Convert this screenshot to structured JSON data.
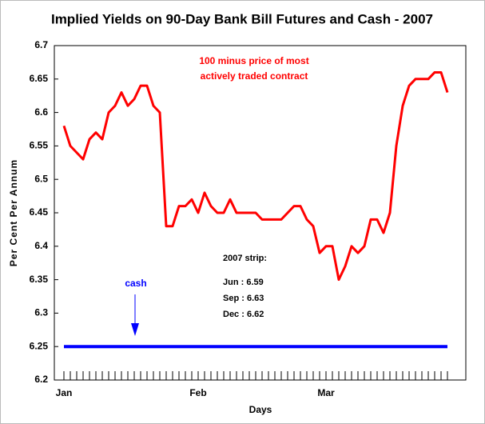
{
  "chart_data": {
    "type": "line",
    "title": "Implied Yields on 90-Day Bank Bill Futures and Cash - 2007",
    "xlabel": "Days",
    "ylabel": "Per Cent Per Annum",
    "annotations": [
      "100 minus price of most",
      "actively traded contract",
      "cash",
      "2007 strip:",
      "Jun :  6.59",
      "Sep :  6.63",
      "Dec :  6.62"
    ],
    "categories": [
      "Jan",
      null,
      null,
      null,
      null,
      null,
      null,
      null,
      null,
      null,
      null,
      null,
      null,
      null,
      null,
      null,
      null,
      null,
      null,
      null,
      null,
      "Feb",
      null,
      null,
      null,
      null,
      null,
      null,
      null,
      null,
      null,
      null,
      null,
      null,
      null,
      null,
      null,
      null,
      null,
      null,
      null,
      "Mar",
      null,
      null,
      null,
      null,
      null,
      null,
      null,
      null,
      null,
      null,
      null,
      null,
      null,
      null,
      null,
      null,
      null,
      null,
      null
    ],
    "series": [
      {
        "name": "100 minus price of most actively traded contract",
        "color": "#ff0000",
        "values": [
          6.58,
          6.55,
          6.54,
          6.53,
          6.56,
          6.57,
          6.56,
          6.6,
          6.61,
          6.63,
          6.61,
          6.62,
          6.64,
          6.64,
          6.61,
          6.6,
          6.43,
          6.43,
          6.46,
          6.46,
          6.47,
          6.45,
          6.48,
          6.46,
          6.45,
          6.45,
          6.47,
          6.45,
          6.45,
          6.45,
          6.45,
          6.44,
          6.44,
          6.44,
          6.44,
          6.45,
          6.46,
          6.46,
          6.44,
          6.43,
          6.39,
          6.4,
          6.4,
          6.35,
          6.37,
          6.4,
          6.39,
          6.4,
          6.44,
          6.44,
          6.42,
          6.45,
          6.55,
          6.61,
          6.64,
          6.65,
          6.65,
          6.65,
          6.66,
          6.66,
          6.63
        ]
      },
      {
        "name": "cash",
        "color": "#0000ff",
        "values": [
          6.25,
          6.25,
          6.25,
          6.25,
          6.25,
          6.25,
          6.25,
          6.25,
          6.25,
          6.25,
          6.25,
          6.25,
          6.25,
          6.25,
          6.25,
          6.25,
          6.25,
          6.25,
          6.25,
          6.25,
          6.25,
          6.25,
          6.25,
          6.25,
          6.25,
          6.25,
          6.25,
          6.25,
          6.25,
          6.25,
          6.25,
          6.25,
          6.25,
          6.25,
          6.25,
          6.25,
          6.25,
          6.25,
          6.25,
          6.25,
          6.25,
          6.25,
          6.25,
          6.25,
          6.25,
          6.25,
          6.25,
          6.25,
          6.25,
          6.25,
          6.25,
          6.25,
          6.25,
          6.25,
          6.25,
          6.25,
          6.25,
          6.25,
          6.25,
          6.25,
          6.25
        ]
      }
    ],
    "ylim": [
      6.2,
      6.7
    ],
    "yticks": [
      6.2,
      6.25,
      6.3,
      6.35,
      6.4,
      6.45,
      6.5,
      6.55,
      6.6,
      6.65,
      6.7
    ],
    "grid": false
  }
}
